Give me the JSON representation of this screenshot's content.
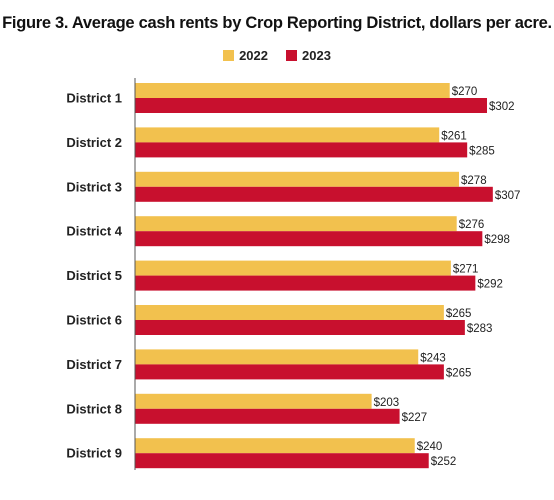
{
  "chart_data": {
    "type": "bar",
    "orientation": "horizontal",
    "title": "Figure 3. Average cash rents by Crop Reporting District, dollars per acre.",
    "categories": [
      "District 1",
      "District 2",
      "District 3",
      "District 4",
      "District 5",
      "District 6",
      "District 7",
      "District 8",
      "District 9"
    ],
    "series": [
      {
        "name": "2022",
        "color": "#F2C14E",
        "values": [
          270,
          261,
          278,
          276,
          271,
          265,
          243,
          203,
          240
        ],
        "labels": [
          "$270",
          "$261",
          "$278",
          "$276",
          "$271",
          "$265",
          "$243",
          "$203",
          "$240"
        ]
      },
      {
        "name": "2023",
        "color": "#C8102E",
        "values": [
          302,
          285,
          307,
          298,
          292,
          283,
          265,
          227,
          252
        ],
        "labels": [
          "$302",
          "$285",
          "$307",
          "$298",
          "$292",
          "$283",
          "$265",
          "$227",
          "$252"
        ]
      }
    ],
    "xlim": [
      0,
      350
    ],
    "legend_position": "top-center",
    "grid": false
  }
}
